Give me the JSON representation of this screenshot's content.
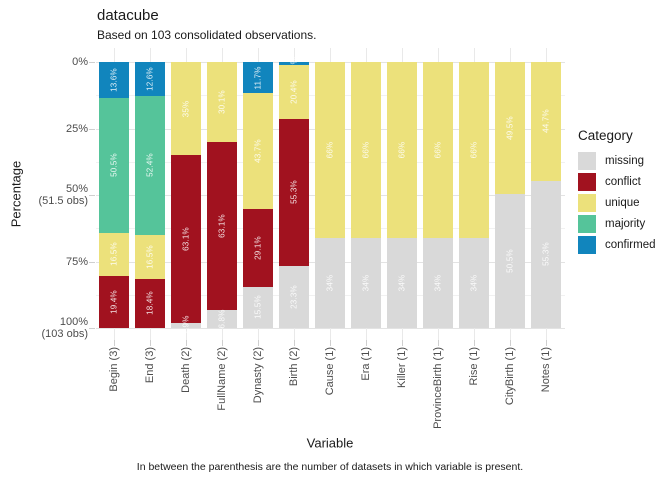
{
  "title": "datacube",
  "subtitle": "Based on 103 consolidated observations.",
  "caption": "In between the parenthesis are the number of datasets in which variable is present.",
  "x_axis_title": "Variable",
  "y_axis_title": "Percentage",
  "y_ticks": [
    {
      "value": 0,
      "lines": [
        "0%"
      ]
    },
    {
      "value": 25,
      "lines": [
        "25%"
      ]
    },
    {
      "value": 50,
      "lines": [
        "50%",
        "(51.5 obs)"
      ]
    },
    {
      "value": 75,
      "lines": [
        "75%"
      ]
    },
    {
      "value": 100,
      "lines": [
        "100%",
        "(103 obs)"
      ]
    }
  ],
  "legend": {
    "title": "Category",
    "items": [
      {
        "label": "missing",
        "color": "#d9d9d9"
      },
      {
        "label": "conflict",
        "color": "#a1121f"
      },
      {
        "label": "unique",
        "color": "#ece17b"
      },
      {
        "label": "majority",
        "color": "#55c49a"
      },
      {
        "label": "confirmed",
        "color": "#1185bd"
      }
    ]
  },
  "chart_data": {
    "type": "bar",
    "stacked": true,
    "orientation": "vertical",
    "title": "datacube",
    "subtitle": "Based on 103 consolidated observations.",
    "xlabel": "Variable",
    "ylabel": "Percentage",
    "ylim": [
      0,
      100
    ],
    "y_unit": "percent",
    "grid": true,
    "legend_position": "right",
    "categories": [
      "Begin (3)",
      "End (3)",
      "Death (2)",
      "FullName (2)",
      "Dynasty (2)",
      "Birth (2)",
      "Cause (1)",
      "Era (1)",
      "Killer (1)",
      "ProvinceBirth (1)",
      "Rise (1)",
      "CityBirth (1)",
      "Notes (1)"
    ],
    "stack_order_top_to_bottom": [
      "confirmed",
      "majority",
      "unique",
      "conflict",
      "missing"
    ],
    "series": [
      {
        "name": "confirmed",
        "color": "#1185bd",
        "values": [
          13.6,
          12.6,
          0,
          0,
          11.7,
          1,
          0,
          0,
          0,
          0,
          0,
          0,
          0
        ]
      },
      {
        "name": "majority",
        "color": "#55c49a",
        "values": [
          50.5,
          52.4,
          0,
          0,
          0,
          0,
          0,
          0,
          0,
          0,
          0,
          0,
          0
        ]
      },
      {
        "name": "unique",
        "color": "#ece17b",
        "values": [
          16.5,
          16.5,
          35,
          30.1,
          43.7,
          20.4,
          66,
          66,
          66,
          66,
          66,
          49.5,
          44.7
        ]
      },
      {
        "name": "conflict",
        "color": "#a1121f",
        "values": [
          19.4,
          18.4,
          63.1,
          63.1,
          29.1,
          55.3,
          0,
          0,
          0,
          0,
          0,
          0,
          0
        ]
      },
      {
        "name": "missing",
        "color": "#d9d9d9",
        "values": [
          0,
          0,
          1.9,
          6.8,
          15.5,
          23.3,
          34,
          34,
          34,
          34,
          34,
          50.5,
          55.3
        ]
      }
    ],
    "segment_label_format": "value%"
  }
}
